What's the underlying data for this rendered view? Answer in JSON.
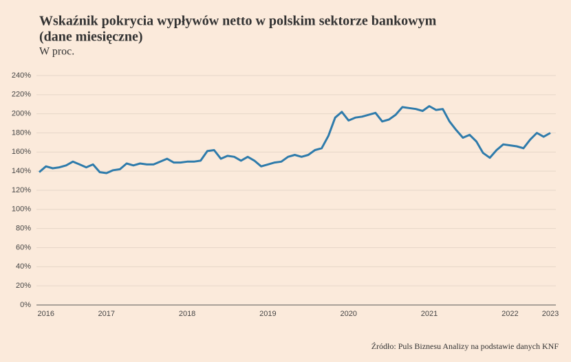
{
  "chart_data": {
    "type": "line",
    "title": "Wskaźnik pokrycia wypływów netto w polskim sektorze bankowym",
    "title_line2": "(dane miesięczne)",
    "subtitle": "W proc.",
    "source": "Źródło: Puls Biznesu Analizy na podstawie danych KNF",
    "categories": [
      null,
      "2016",
      null,
      null,
      null,
      null,
      null,
      null,
      null,
      null,
      "2017",
      null,
      null,
      null,
      null,
      null,
      null,
      null,
      null,
      null,
      null,
      null,
      "2018",
      null,
      null,
      null,
      null,
      null,
      null,
      null,
      null,
      null,
      null,
      null,
      "2019",
      null,
      null,
      null,
      null,
      null,
      null,
      null,
      null,
      null,
      null,
      null,
      "2020",
      null,
      null,
      null,
      null,
      null,
      null,
      null,
      null,
      null,
      null,
      null,
      "2021",
      null,
      null,
      null,
      null,
      null,
      null,
      null,
      null,
      null,
      null,
      null,
      "2022",
      null,
      null,
      null,
      null,
      null,
      "2023"
    ],
    "series": [
      {
        "name": "Wskaźnik pokrycia wypływów netto",
        "color": "#2e7bab",
        "values": [
          139,
          145,
          143,
          144,
          146,
          150,
          147,
          144,
          147,
          139,
          138,
          141,
          142,
          148,
          146,
          148,
          147,
          147,
          150,
          153,
          149,
          149,
          150,
          150,
          151,
          161,
          162,
          153,
          156,
          155,
          151,
          155,
          151,
          145,
          147,
          149,
          150,
          155,
          157,
          155,
          157,
          162,
          164,
          177,
          196,
          202,
          193,
          196,
          197,
          199,
          201,
          192,
          194,
          199,
          207,
          206,
          205,
          203,
          208,
          204,
          205,
          192,
          183,
          175,
          178,
          171,
          159,
          154,
          162,
          168,
          167,
          166,
          164,
          173,
          180,
          176,
          180
        ]
      }
    ],
    "ylim": [
      0,
      240
    ],
    "yticks": [
      {
        "value": 0,
        "label": "0%"
      },
      {
        "value": 20,
        "label": "20%"
      },
      {
        "value": 40,
        "label": "40%"
      },
      {
        "value": 60,
        "label": "60%"
      },
      {
        "value": 80,
        "label": "80%"
      },
      {
        "value": 100,
        "label": "100%"
      },
      {
        "value": 120,
        "label": "120%"
      },
      {
        "value": 140,
        "label": "140%"
      },
      {
        "value": 160,
        "label": "160%"
      },
      {
        "value": 180,
        "label": "180%"
      },
      {
        "value": 200,
        "label": "200%"
      },
      {
        "value": 220,
        "label": "220%"
      },
      {
        "value": 240,
        "label": "240%"
      }
    ],
    "grid": true
  }
}
